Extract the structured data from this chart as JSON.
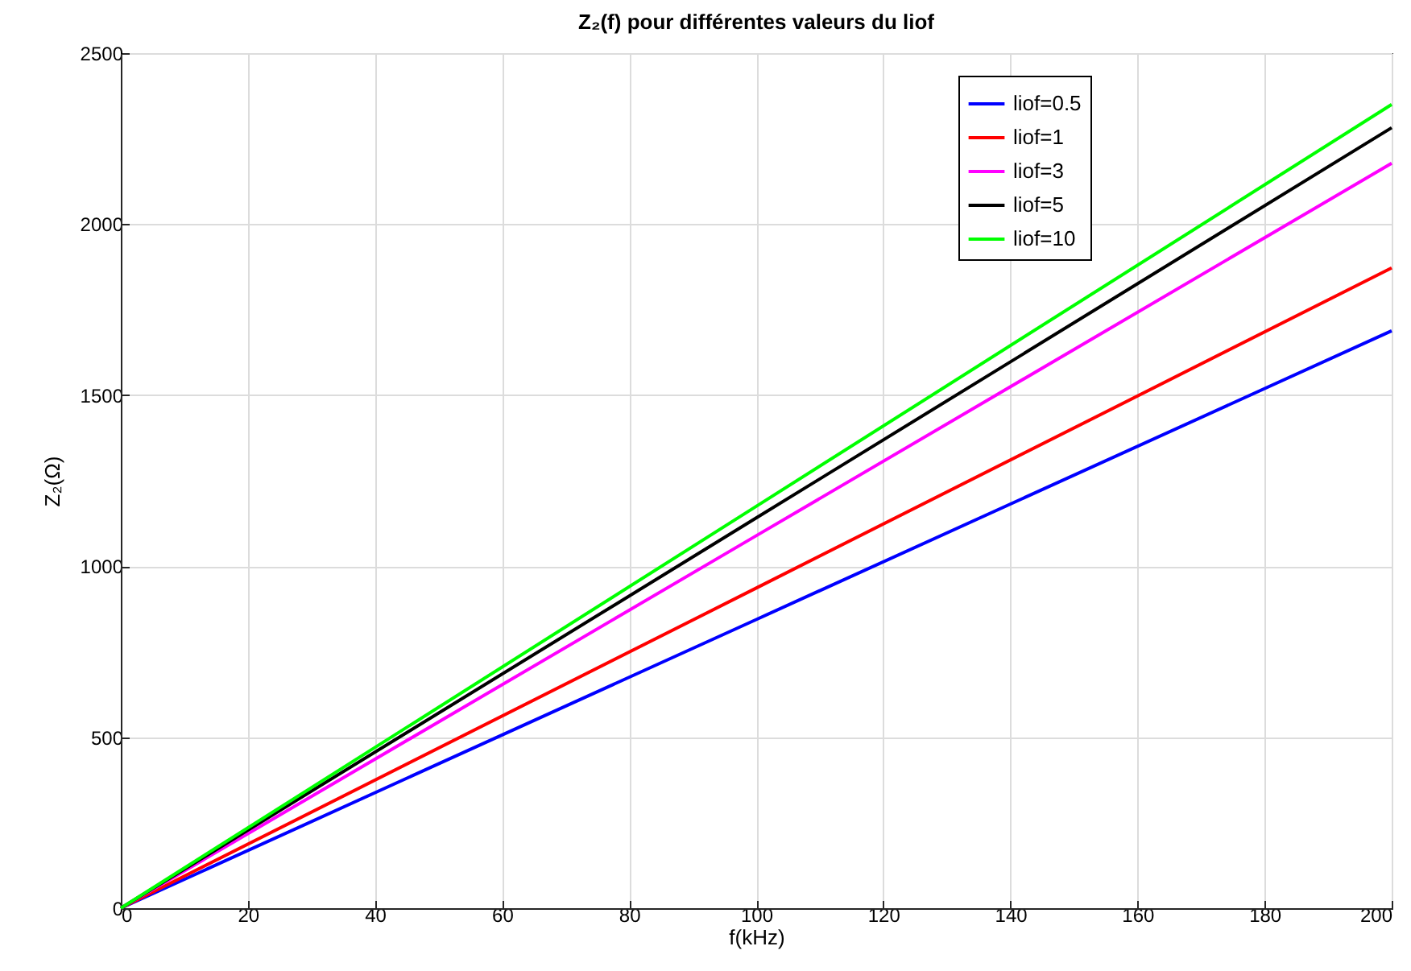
{
  "chart_data": {
    "type": "line",
    "title": "Z₂(f) pour différentes valeurs du liof",
    "xlabel": "f(kHz)",
    "ylabel": "Z₂(Ω)",
    "x": [
      0,
      100,
      200
    ],
    "series": [
      {
        "name": "liof=0.5",
        "color": "#0000ff",
        "values": [
          0,
          844,
          1688
        ]
      },
      {
        "name": "liof=1",
        "color": "#ff0000",
        "values": [
          0,
          936,
          1872
        ]
      },
      {
        "name": "liof=3",
        "color": "#ff00ff",
        "values": [
          0,
          1089,
          2178
        ]
      },
      {
        "name": "liof=5",
        "color": "#000000",
        "values": [
          0,
          1141,
          2282
        ]
      },
      {
        "name": "liof=10",
        "color": "#00ff00",
        "values": [
          0,
          1175,
          2350
        ]
      }
    ],
    "xlim": [
      0,
      200
    ],
    "xticks": [
      0,
      20,
      40,
      60,
      80,
      100,
      120,
      140,
      160,
      180,
      200
    ],
    "ylim": [
      0,
      2500
    ],
    "yticks": [
      0,
      500,
      1000,
      1500,
      2000,
      2500
    ],
    "grid": true,
    "legend": "top right",
    "line_style": "solid",
    "marker": "none"
  }
}
